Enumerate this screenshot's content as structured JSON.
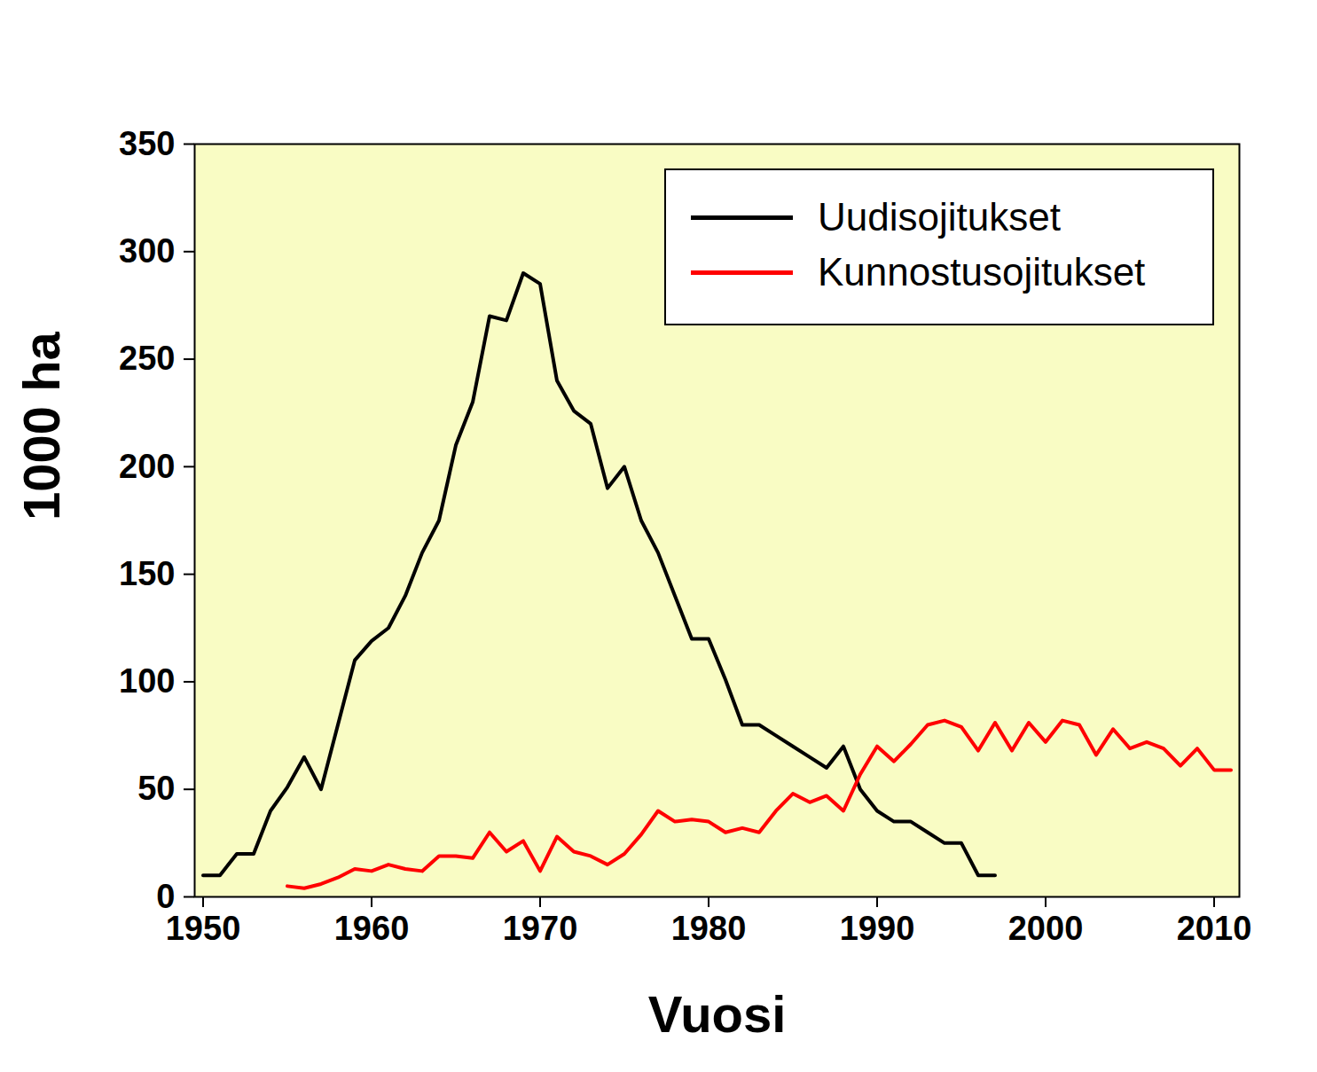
{
  "chart_data": {
    "type": "line",
    "xlabel": "Vuosi",
    "ylabel": "1000 ha",
    "x": [
      1950,
      1951,
      1952,
      1953,
      1954,
      1955,
      1956,
      1957,
      1958,
      1959,
      1960,
      1961,
      1962,
      1963,
      1964,
      1965,
      1966,
      1967,
      1968,
      1969,
      1970,
      1971,
      1972,
      1973,
      1974,
      1975,
      1976,
      1977,
      1978,
      1979,
      1980,
      1981,
      1982,
      1983,
      1984,
      1985,
      1986,
      1987,
      1988,
      1989,
      1990,
      1991,
      1992,
      1993,
      1994,
      1995,
      1996,
      1997,
      1998,
      1999,
      2000,
      2001,
      2002,
      2003,
      2004,
      2005,
      2006,
      2007,
      2008,
      2009,
      2010,
      2011
    ],
    "series": [
      {
        "name": "Uudisojitukset",
        "color": "#000000",
        "values": [
          10,
          10,
          20,
          20,
          40,
          51,
          65,
          50,
          80,
          110,
          119,
          125,
          140,
          160,
          175,
          210,
          230,
          270,
          268,
          290,
          285,
          240,
          226,
          220,
          190,
          200,
          175,
          160,
          140,
          120,
          120,
          101,
          80,
          80,
          75,
          70,
          65,
          60,
          70,
          50,
          40,
          35,
          35,
          30,
          25,
          25,
          10,
          10,
          null,
          null,
          null,
          null,
          null,
          null,
          null,
          null,
          null,
          null,
          null,
          null,
          null,
          null
        ]
      },
      {
        "name": "Kunnostusojitukset",
        "color": "#ff0000",
        "values": [
          null,
          null,
          null,
          null,
          null,
          5,
          4,
          6,
          9,
          13,
          12,
          15,
          13,
          12,
          19,
          19,
          18,
          30,
          21,
          26,
          12,
          28,
          21,
          19,
          15,
          20,
          29,
          40,
          35,
          36,
          35,
          30,
          32,
          30,
          40,
          48,
          44,
          47,
          40,
          57,
          70,
          63,
          71,
          80,
          82,
          79,
          68,
          81,
          68,
          81,
          72,
          82,
          80,
          66,
          78,
          69,
          72,
          69,
          61,
          69,
          59,
          59
        ]
      }
    ],
    "xlim": [
      1949.5,
      2011.5
    ],
    "xticks": [
      1950,
      1960,
      1970,
      1980,
      1990,
      2000,
      2010
    ],
    "ylim": [
      0,
      350
    ],
    "yticks": [
      0,
      50,
      100,
      150,
      200,
      250,
      300,
      350
    ],
    "legend": "top-right"
  }
}
